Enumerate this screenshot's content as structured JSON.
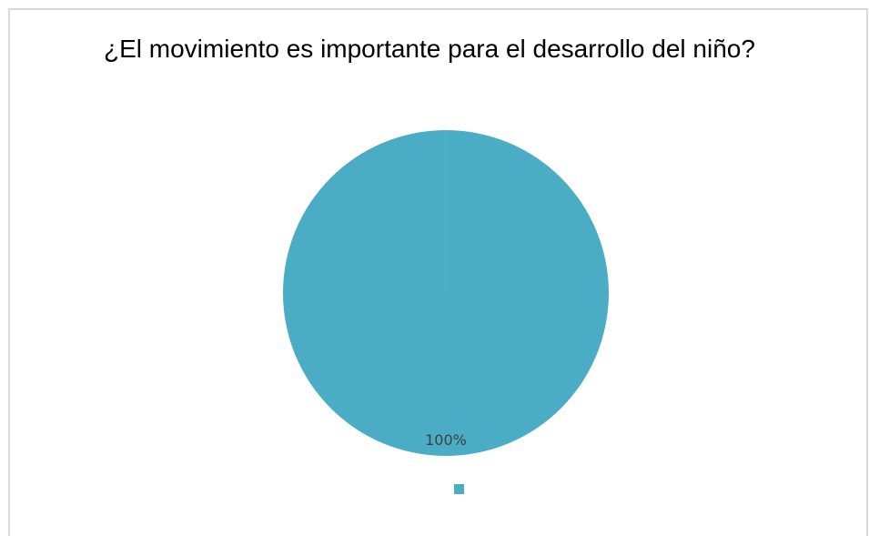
{
  "chart_data": {
    "type": "pie",
    "title": "¿El movimiento es importante para el desarrollo del niño?",
    "slices": [
      {
        "name": "",
        "value": 100,
        "label": "100%",
        "color": "#4bacc6"
      }
    ],
    "legend": {
      "position": "bottom"
    }
  }
}
